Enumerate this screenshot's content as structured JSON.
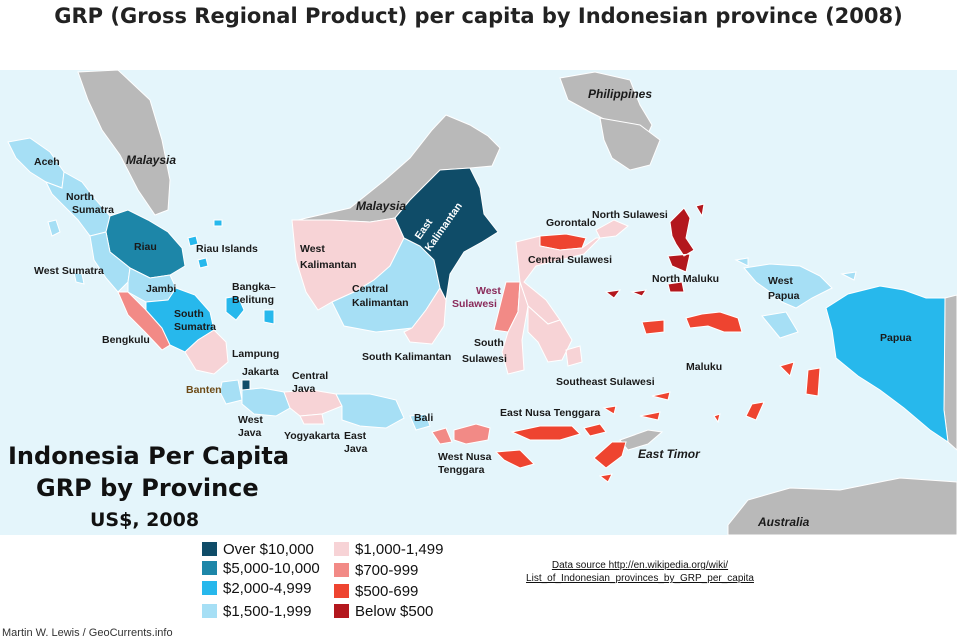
{
  "title": "GRP (Gross Regional Product) per capita by Indonesian province (2008)",
  "map": {
    "colors": {
      "sea": "#e4f5fb",
      "other_land": "#b9b9b9",
      "border": "#ffffff",
      "class_10000_plus": "#0f4c68",
      "class_5000_10000": "#1d86a8",
      "class_2000_4999": "#27b8ec",
      "class_1500_1999": "#a6dff5",
      "class_1000_1499": "#f7d3d6",
      "class_700_999": "#f28a86",
      "class_500_699": "#ee4430",
      "class_below_500": "#b3171d"
    },
    "countries": [
      "Malaysia",
      "Malaysia",
      "Philippines",
      "East Timor",
      "Australia"
    ],
    "provinces": [
      "Aceh",
      "North Sumatra",
      "Riau",
      "Riau Islands",
      "West Sumatra",
      "Jambi",
      "Bangka–Belitung",
      "South Sumatra",
      "Bengkulu",
      "Lampung",
      "Jakarta",
      "Banten",
      "West Java",
      "Central Java",
      "Yogyakarta",
      "East Java",
      "Bali",
      "West Nusa Tenggara",
      "East Nusa Tenggara",
      "West Kalimantan",
      "Central Kalimantan",
      "South Kalimantan",
      "East Kalimantan",
      "West Sulawesi",
      "South Sulawesi",
      "Gorontalo",
      "North Sulawesi",
      "Central Sulawesi",
      "Southeast Sulawesi",
      "North Maluku",
      "Maluku",
      "West Papua",
      "Papua"
    ],
    "provinces_multi": {
      "north_sumatra": [
        "North",
        "Sumatra"
      ],
      "south_sumatra": [
        "South",
        "Sumatra"
      ],
      "bangka": [
        "Bangka–",
        "Belitung"
      ],
      "central_java": [
        "Central",
        "Java"
      ],
      "west_java": [
        "West",
        "Java"
      ],
      "east_java": [
        "East",
        "Java"
      ],
      "west_nusa": [
        "West Nusa",
        "Tenggara"
      ],
      "west_kalimantan": [
        "West",
        "Kalimantan"
      ],
      "central_kalimantan": [
        "Central",
        "Kalimantan"
      ],
      "east_kalimantan": [
        "East",
        "Kalimantan"
      ],
      "west_sulawesi": [
        "West",
        "Sulawesi"
      ],
      "south_sulawesi": [
        "South",
        "Sulawesi"
      ],
      "west_papua": [
        "West",
        "Papua"
      ]
    }
  },
  "inset_title": {
    "line1": "Indonesia Per Capita",
    "line2": "GRP by Province",
    "line3": "US$, 2008"
  },
  "legend": {
    "items": [
      {
        "label": "Over $10,000",
        "color": "#0f4c68"
      },
      {
        "label": "$5,000-10,000",
        "color": "#1d86a8"
      },
      {
        "label": "$2,000-4,999",
        "color": "#27b8ec"
      },
      {
        "label": "$1,500-1,999",
        "color": "#a6dff5"
      },
      {
        "label": "$1,000-1,499",
        "color": "#f7d3d6"
      },
      {
        "label": "$700-999",
        "color": "#f28a86"
      },
      {
        "label": "$500-699",
        "color": "#ee4430"
      },
      {
        "label": "Below $500",
        "color": "#b3171d"
      }
    ]
  },
  "source": {
    "line1": "Data source http://en.wikipedia.org/wiki/",
    "line2": "List_of_Indonesian_provinces_by_GRP_per_capita"
  },
  "credit": "Martin W. Lewis / GeoCurrents.info"
}
